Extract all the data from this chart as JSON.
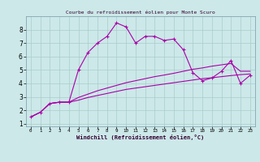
{
  "title": "Courbe du refroidissement éolien pour Monte Scuro",
  "xlabel": "Windchill (Refroidissement éolien,°C)",
  "bg_color": "#cce8e8",
  "line_color": "#aa00aa",
  "grid_color": "#aacccc",
  "border_color": "#7799aa",
  "xlim": [
    -0.5,
    23.5
  ],
  "ylim": [
    0.8,
    9.0
  ],
  "yticks": [
    1,
    2,
    3,
    4,
    5,
    6,
    7,
    8
  ],
  "xticks": [
    0,
    1,
    2,
    3,
    4,
    5,
    6,
    7,
    8,
    9,
    10,
    11,
    12,
    13,
    14,
    15,
    16,
    17,
    18,
    19,
    20,
    21,
    22,
    23
  ],
  "series1_x": [
    0,
    1,
    2,
    3,
    4,
    5,
    6,
    7,
    8,
    9,
    10,
    11,
    12,
    13,
    14,
    15,
    16,
    17,
    18,
    19,
    20,
    21,
    22,
    23
  ],
  "series1_y": [
    1.5,
    1.85,
    2.5,
    2.6,
    2.6,
    5.0,
    6.3,
    7.0,
    7.5,
    8.5,
    8.2,
    7.0,
    7.5,
    7.5,
    7.2,
    7.3,
    6.5,
    4.8,
    4.2,
    4.4,
    4.9,
    5.7,
    4.0,
    4.6
  ],
  "series2_x": [
    0,
    1,
    2,
    3,
    4,
    5,
    6,
    7,
    8,
    9,
    10,
    11,
    12,
    13,
    14,
    15,
    16,
    17,
    18,
    19,
    20,
    21,
    22,
    23
  ],
  "series2_y": [
    1.5,
    1.85,
    2.5,
    2.6,
    2.6,
    2.75,
    2.95,
    3.1,
    3.25,
    3.4,
    3.55,
    3.65,
    3.75,
    3.85,
    3.95,
    4.05,
    4.15,
    4.25,
    4.35,
    4.42,
    4.5,
    4.58,
    4.65,
    4.7
  ],
  "series3_x": [
    0,
    1,
    2,
    3,
    4,
    5,
    6,
    7,
    8,
    9,
    10,
    11,
    12,
    13,
    14,
    15,
    16,
    17,
    18,
    19,
    20,
    21,
    22,
    23
  ],
  "series3_y": [
    1.5,
    1.85,
    2.5,
    2.6,
    2.6,
    2.95,
    3.2,
    3.45,
    3.65,
    3.85,
    4.05,
    4.2,
    4.35,
    4.5,
    4.62,
    4.75,
    4.9,
    5.05,
    5.15,
    5.28,
    5.38,
    5.48,
    4.9,
    4.9
  ]
}
